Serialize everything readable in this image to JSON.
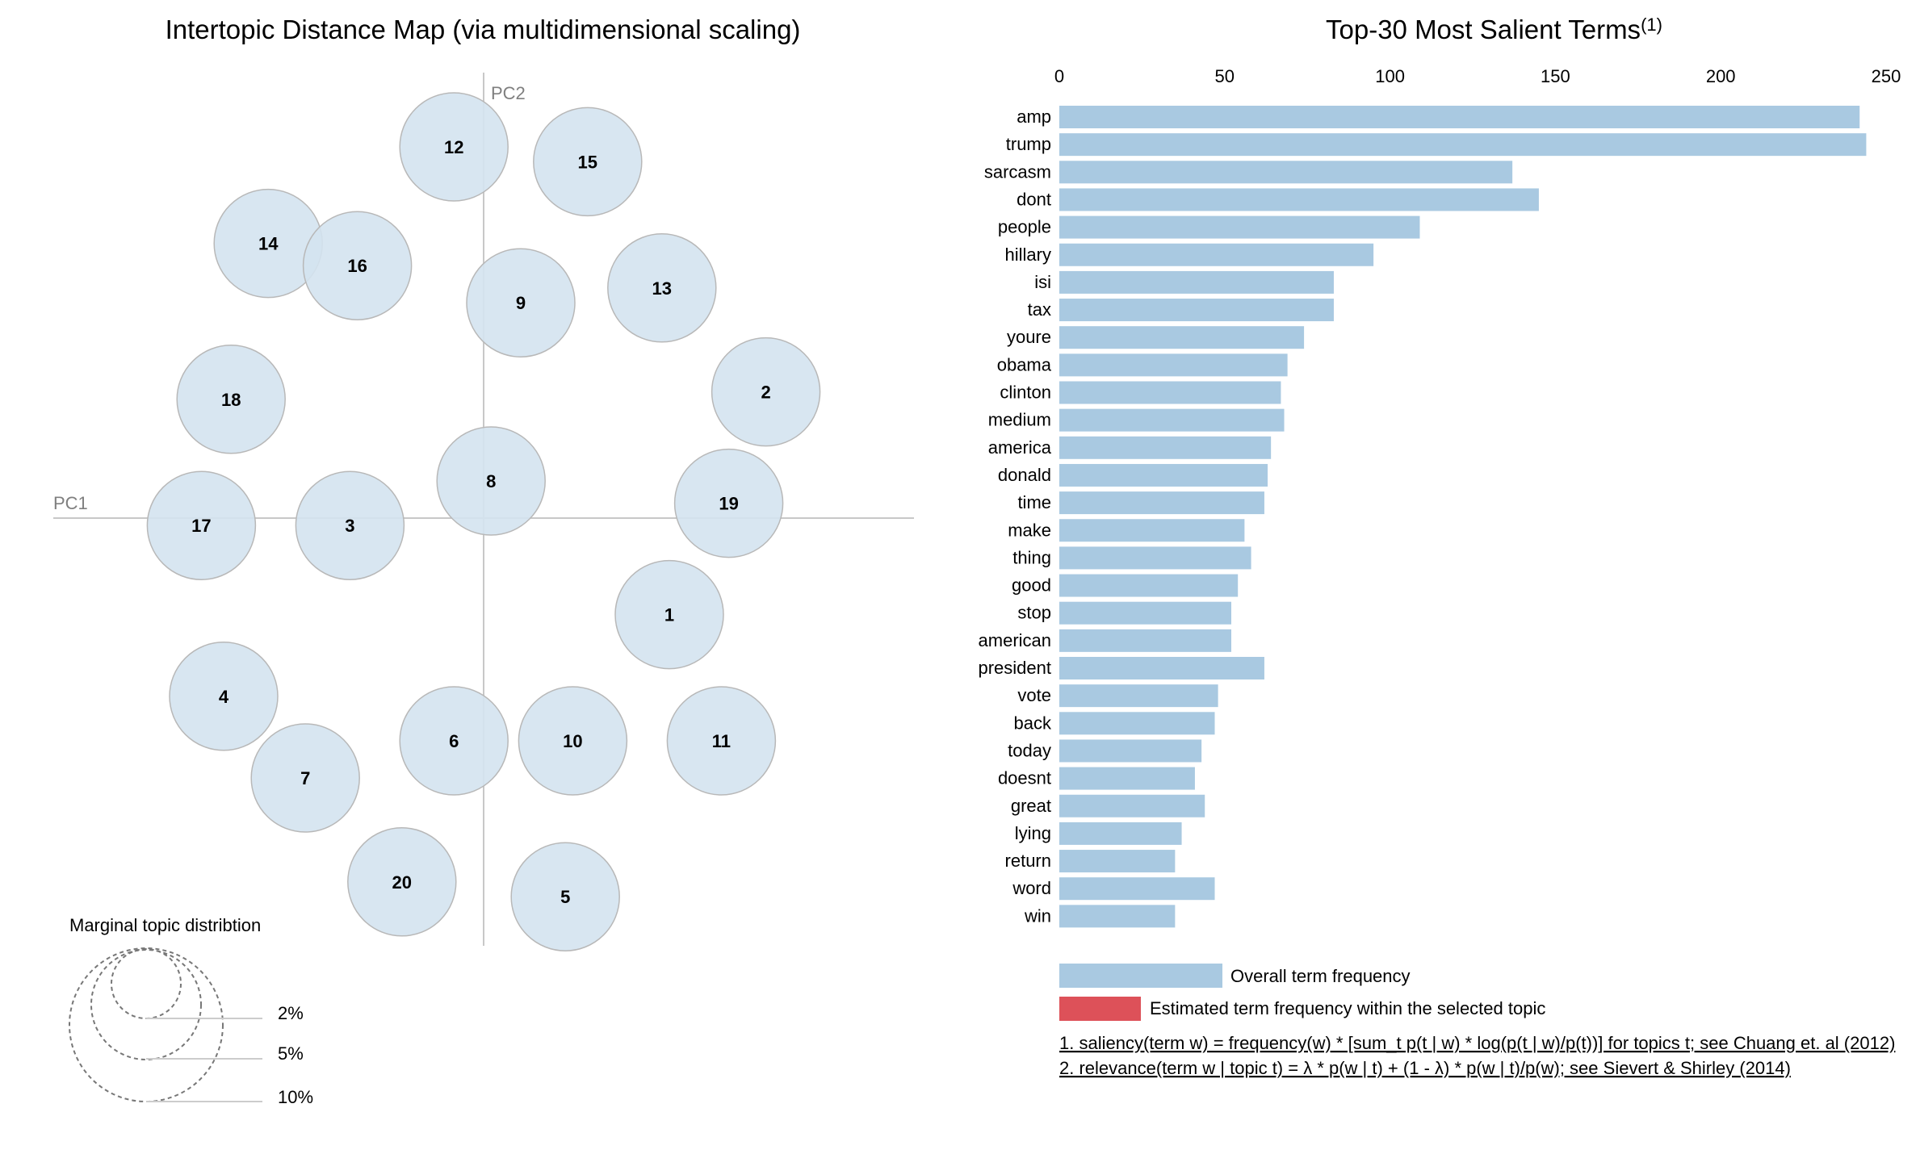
{
  "left_panel": {
    "title": "Intertopic Distance Map (via multidimensional scaling)",
    "pc1_label": "PC1",
    "pc2_label": "PC2",
    "marginal_title": "Marginal topic distribtion",
    "marginal_levels": [
      "2%",
      "5%",
      "10%"
    ]
  },
  "right_panel": {
    "title": "Top-30 Most Salient Terms",
    "title_sup": "(1)",
    "legend_overall": "Overall term frequency",
    "legend_topic": "Estimated term frequency within the selected topic",
    "footnote1": "1. saliency(term w) = frequency(w) * [sum_t p(t | w) * log(p(t | w)/p(t))] for topics t; see Chuang et. al (2012)",
    "footnote2": "2. relevance(term w | topic t) = λ * p(w | t) + (1 - λ) * p(w | t)/p(w); see Sievert & Shirley (2014)"
  },
  "colors": {
    "bar": "#a9c9e1",
    "topic_bar": "#dd5159",
    "circle_fill": "#d4e3ef",
    "circle_stroke": "#b8b8b8",
    "axis_line": "#c8c8c8"
  },
  "chart_data": [
    {
      "type": "scatter",
      "title": "Intertopic Distance Map (via multidimensional scaling)",
      "xlabel": "PC1",
      "ylabel": "PC2",
      "points": [
        {
          "topic": "1",
          "x": 0.25,
          "y": -0.13
        },
        {
          "topic": "2",
          "x": 0.38,
          "y": 0.17
        },
        {
          "topic": "3",
          "x": -0.18,
          "y": -0.01
        },
        {
          "topic": "4",
          "x": -0.35,
          "y": -0.24
        },
        {
          "topic": "5",
          "x": 0.11,
          "y": -0.51
        },
        {
          "topic": "6",
          "x": -0.04,
          "y": -0.3
        },
        {
          "topic": "7",
          "x": -0.24,
          "y": -0.35
        },
        {
          "topic": "8",
          "x": 0.01,
          "y": 0.05
        },
        {
          "topic": "9",
          "x": 0.05,
          "y": 0.29
        },
        {
          "topic": "10",
          "x": 0.12,
          "y": -0.3
        },
        {
          "topic": "11",
          "x": 0.32,
          "y": -0.3
        },
        {
          "topic": "12",
          "x": -0.04,
          "y": 0.5
        },
        {
          "topic": "13",
          "x": 0.24,
          "y": 0.31
        },
        {
          "topic": "14",
          "x": -0.29,
          "y": 0.37
        },
        {
          "topic": "15",
          "x": 0.14,
          "y": 0.48
        },
        {
          "topic": "16",
          "x": -0.17,
          "y": 0.34
        },
        {
          "topic": "17",
          "x": -0.38,
          "y": -0.01
        },
        {
          "topic": "18",
          "x": -0.34,
          "y": 0.16
        },
        {
          "topic": "19",
          "x": 0.33,
          "y": 0.02
        },
        {
          "topic": "20",
          "x": -0.11,
          "y": -0.49
        }
      ]
    },
    {
      "type": "bar",
      "orientation": "horizontal",
      "title": "Top-30 Most Salient Terms",
      "xlim": [
        0,
        250
      ],
      "xticks": [
        0,
        50,
        100,
        150,
        200,
        250
      ],
      "categories": [
        "amp",
        "trump",
        "sarcasm",
        "dont",
        "people",
        "hillary",
        "isi",
        "tax",
        "youre",
        "obama",
        "clinton",
        "medium",
        "america",
        "donald",
        "time",
        "make",
        "thing",
        "good",
        "stop",
        "american",
        "president",
        "vote",
        "back",
        "today",
        "doesnt",
        "great",
        "lying",
        "return",
        "word",
        "win"
      ],
      "values": [
        242,
        244,
        137,
        145,
        109,
        95,
        83,
        83,
        74,
        69,
        67,
        68,
        64,
        63,
        62,
        56,
        58,
        54,
        52,
        52,
        62,
        48,
        47,
        43,
        41,
        44,
        37,
        35,
        47,
        35
      ]
    }
  ]
}
